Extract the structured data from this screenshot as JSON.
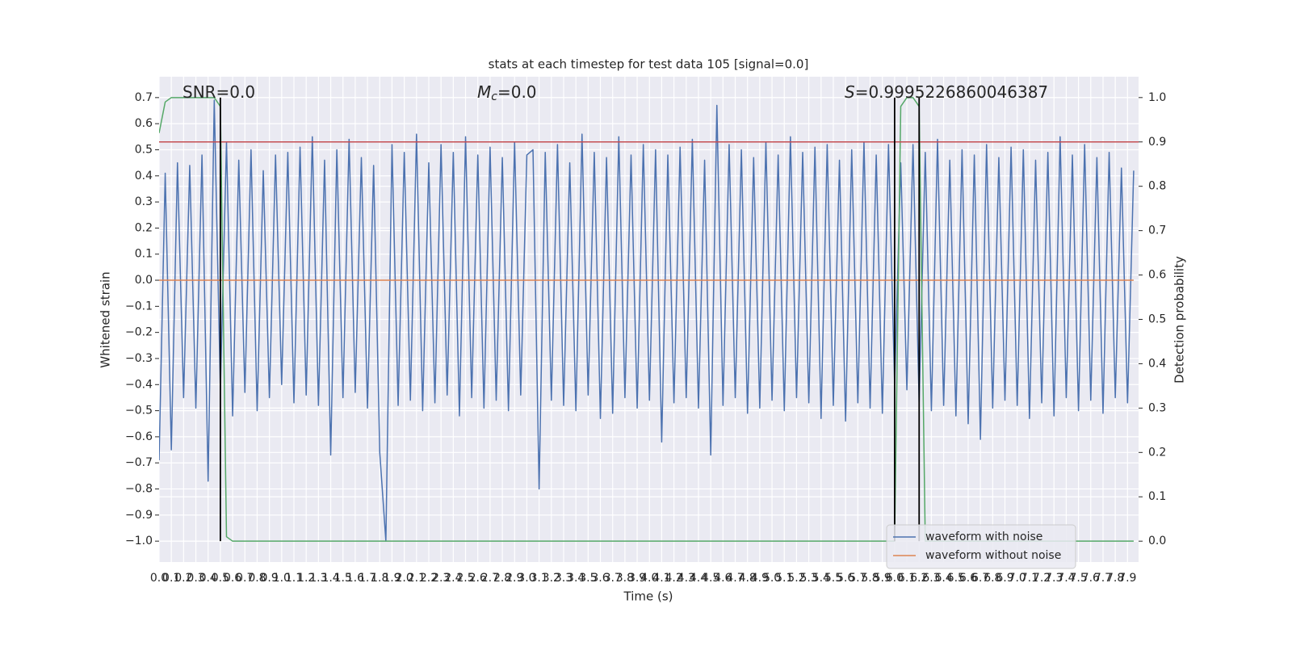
{
  "chart_data": {
    "type": "line",
    "title": "stats at each timestep for test data 105 [signal=0.0]",
    "x_label": "Time (s)",
    "y_label": "Whitened strain",
    "y2_label": "Detection probability",
    "annotations": [
      {
        "text": "SNR=0.0"
      },
      {
        "symbol": "M",
        "subscript": "c",
        "text": "=0.0"
      },
      {
        "symbol": "S",
        "text": "=0.9995226860046387"
      }
    ],
    "xlim": [
      0,
      7.99
    ],
    "ylim": [
      -1.08,
      0.78
    ],
    "y2lim": [
      -0.047,
      1.047
    ],
    "grid": true,
    "legend": "lower right",
    "xticks": [
      {
        "value": 0,
        "label": "0.0"
      },
      0.1,
      0.2,
      0.3,
      0.4,
      0.5,
      0.6,
      0.7,
      0.8,
      0.9,
      {
        "value": 1,
        "label": "1.0"
      },
      1.1,
      1.2,
      1.3,
      1.4,
      1.5,
      1.6,
      1.7,
      1.8,
      1.9,
      {
        "value": 2,
        "label": "2.0"
      },
      2.1,
      2.2,
      2.3,
      2.4,
      2.5,
      2.6,
      2.7,
      2.8,
      2.9,
      {
        "value": 3,
        "label": "3.0"
      },
      3.1,
      3.2,
      3.3,
      3.4,
      3.5,
      3.6,
      3.7,
      3.8,
      3.9,
      {
        "value": 4,
        "label": "4.0"
      },
      4.1,
      4.2,
      4.3,
      4.4,
      4.5,
      4.6,
      4.7,
      4.8,
      4.9,
      {
        "value": 5,
        "label": "5.0"
      },
      5.1,
      5.2,
      5.3,
      5.4,
      5.5,
      5.6,
      5.7,
      5.8,
      5.9,
      {
        "value": 6,
        "label": "6.0"
      },
      6.1,
      6.2,
      6.3,
      6.4,
      6.5,
      6.6,
      6.7,
      6.8,
      6.9,
      {
        "value": 7,
        "label": "7.0"
      },
      7.1,
      7.2,
      7.3,
      7.4,
      7.5,
      7.6,
      7.7,
      7.8,
      7.9
    ],
    "yticks": [
      {
        "value": -1.0,
        "label": "−1.0"
      },
      {
        "value": -0.9,
        "label": "−0.9"
      },
      {
        "value": -0.8,
        "label": "−0.8"
      },
      {
        "value": -0.7,
        "label": "−0.7"
      },
      {
        "value": -0.6,
        "label": "−0.6"
      },
      {
        "value": -0.5,
        "label": "−0.5"
      },
      {
        "value": -0.4,
        "label": "−0.4"
      },
      {
        "value": -0.3,
        "label": "−0.3"
      },
      {
        "value": -0.2,
        "label": "−0.2"
      },
      {
        "value": -0.1,
        "label": "−0.1"
      },
      {
        "value": 0,
        "label": "0.0"
      },
      0.1,
      0.2,
      0.3,
      0.4,
      0.5,
      0.6,
      0.7
    ],
    "y2ticks": [
      {
        "value": 0,
        "label": "0.0"
      },
      0.1,
      0.2,
      0.3,
      0.4,
      0.5,
      0.6,
      0.7,
      0.8,
      0.9,
      {
        "value": 1,
        "label": "1.0"
      }
    ],
    "series": [
      {
        "name": "waveform with noise",
        "color": "#4c72b0",
        "x": [
          0,
          0.05,
          0.1,
          0.15,
          0.2,
          0.25,
          0.3,
          0.35,
          0.4,
          0.45,
          0.5,
          0.55,
          0.6,
          0.65,
          0.7,
          0.75,
          0.8,
          0.85,
          0.9,
          0.95,
          1,
          1.05,
          1.1,
          1.15,
          1.2,
          1.25,
          1.3,
          1.35,
          1.4,
          1.45,
          1.5,
          1.55,
          1.6,
          1.65,
          1.7,
          1.75,
          1.8,
          1.85,
          1.9,
          1.95,
          2,
          2.05,
          2.1,
          2.15,
          2.2,
          2.25,
          2.3,
          2.35,
          2.4,
          2.45,
          2.5,
          2.55,
          2.6,
          2.65,
          2.7,
          2.75,
          2.8,
          2.85,
          2.9,
          2.95,
          3,
          3.05,
          3.1,
          3.15,
          3.2,
          3.25,
          3.3,
          3.35,
          3.4,
          3.45,
          3.5,
          3.55,
          3.6,
          3.65,
          3.7,
          3.75,
          3.8,
          3.85,
          3.9,
          3.95,
          4,
          4.05,
          4.1,
          4.15,
          4.2,
          4.25,
          4.3,
          4.35,
          4.4,
          4.45,
          4.5,
          4.55,
          4.6,
          4.65,
          4.7,
          4.75,
          4.8,
          4.85,
          4.9,
          4.95,
          5,
          5.05,
          5.1,
          5.15,
          5.2,
          5.25,
          5.3,
          5.35,
          5.4,
          5.45,
          5.5,
          5.55,
          5.6,
          5.65,
          5.7,
          5.75,
          5.8,
          5.85,
          5.9,
          5.95,
          6,
          6.05,
          6.1,
          6.15,
          6.2,
          6.25,
          6.3,
          6.35,
          6.4,
          6.45,
          6.5,
          6.55,
          6.6,
          6.65,
          6.7,
          6.75,
          6.8,
          6.85,
          6.9,
          6.95,
          7,
          7.05,
          7.1,
          7.15,
          7.2,
          7.25,
          7.3,
          7.35,
          7.4,
          7.45,
          7.5,
          7.55,
          7.6,
          7.65,
          7.7,
          7.75,
          7.8,
          7.85,
          7.9,
          7.95
        ],
        "values": [
          -0.69,
          0.41,
          -0.65,
          0.45,
          -0.45,
          0.44,
          -0.49,
          0.48,
          -0.77,
          0.69,
          -0.42,
          0.53,
          -0.52,
          0.46,
          -0.43,
          0.5,
          -0.5,
          0.42,
          -0.45,
          0.48,
          -0.4,
          0.49,
          -0.47,
          0.51,
          -0.44,
          0.55,
          -0.48,
          0.46,
          -0.67,
          0.5,
          -0.45,
          0.54,
          -0.43,
          0.47,
          -0.49,
          0.44,
          -0.66,
          -1.0,
          0.52,
          -0.48,
          0.49,
          -0.46,
          0.56,
          -0.5,
          0.45,
          -0.47,
          0.52,
          -0.44,
          0.49,
          -0.52,
          0.55,
          -0.45,
          0.48,
          -0.49,
          0.51,
          -0.46,
          0.47,
          -0.5,
          0.53,
          -0.44,
          0.48,
          0.5,
          -0.8,
          0.49,
          -0.46,
          0.52,
          -0.48,
          0.45,
          -0.5,
          0.56,
          -0.44,
          0.49,
          -0.53,
          0.47,
          -0.51,
          0.55,
          -0.45,
          0.48,
          -0.49,
          0.52,
          -0.46,
          0.5,
          -0.62,
          0.48,
          -0.47,
          0.51,
          -0.45,
          0.54,
          -0.49,
          0.46,
          -0.67,
          0.67,
          -0.48,
          0.52,
          -0.45,
          0.5,
          -0.51,
          0.47,
          -0.49,
          0.53,
          -0.46,
          0.48,
          -0.5,
          0.55,
          -0.45,
          0.49,
          -0.47,
          0.51,
          -0.53,
          0.52,
          -0.48,
          0.46,
          -0.54,
          0.5,
          -0.47,
          0.53,
          -0.49,
          0.48,
          -0.51,
          0.52,
          -0.4,
          0.45,
          -0.42,
          0.52,
          -0.47,
          0.49,
          -0.5,
          0.54,
          -0.48,
          0.46,
          -0.52,
          0.5,
          -0.55,
          0.48,
          -0.61,
          0.52,
          -0.49,
          0.47,
          -0.46,
          0.51,
          -0.48,
          0.5,
          -0.53,
          0.46,
          -0.47,
          0.49,
          -0.52,
          0.55,
          -0.45,
          0.48,
          -0.5,
          0.52,
          -0.46,
          0.47,
          -0.51,
          0.49,
          -0.45,
          0.43,
          -0.47,
          0.42
        ]
      },
      {
        "name": "waveform without noise",
        "color": "#dd8452",
        "x": [
          0,
          7.95
        ],
        "values": [
          0,
          0
        ]
      },
      {
        "color": "#55a868",
        "axis": "y2",
        "x": [
          0,
          0.05,
          0.1,
          0.45,
          0.5,
          0.55,
          0.6,
          6.0,
          6.05,
          6.1,
          6.15,
          6.2,
          6.25,
          7.95
        ],
        "values": [
          0.92,
          0.99,
          1.0,
          1.0,
          0.98,
          0.01,
          0.0,
          0.0,
          0.98,
          1.0,
          1.0,
          0.98,
          0.0,
          0.0
        ]
      }
    ],
    "hlines": [
      {
        "value": 0.9,
        "axis": "y2",
        "color": "#c44e52"
      }
    ],
    "vlines": [
      {
        "value": 0.5,
        "color": "#000000"
      },
      {
        "value": 6.0,
        "color": "#000000"
      },
      {
        "value": 6.2,
        "color": "#000000"
      }
    ]
  }
}
